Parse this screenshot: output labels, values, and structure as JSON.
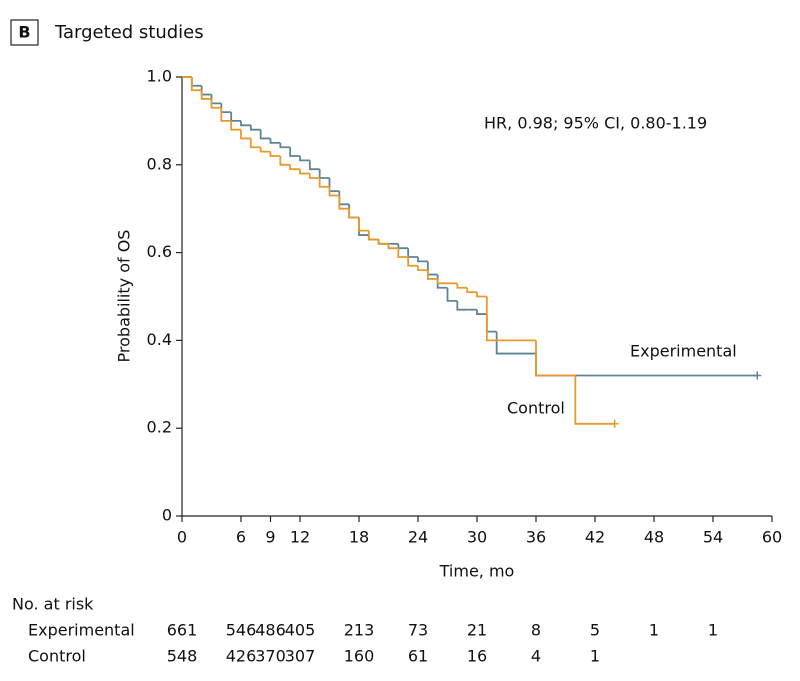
{
  "chart_data": {
    "type": "km",
    "panel": "B",
    "title": "Targeted studies",
    "annotation": "HR, 0.98; 95% CI, 0.80-1.19",
    "xlabel": "Time, mo",
    "ylabel": "Probability of OS",
    "xlim": [
      0,
      60
    ],
    "ylim": [
      0,
      1
    ],
    "xticks": [
      0,
      6,
      9,
      12,
      18,
      24,
      30,
      36,
      42,
      48,
      54,
      60
    ],
    "yticks": [
      0,
      0.2,
      0.4,
      0.6,
      0.8,
      {
        "value": 1,
        "label": "1.0"
      }
    ],
    "at_risk_title": "No. at risk",
    "at_risk_times": [
      0,
      6,
      9,
      12,
      18,
      24,
      30,
      36,
      42,
      48,
      54
    ],
    "series": [
      {
        "name": "Experimental",
        "color": "#5d8595",
        "x": [
          0,
          1,
          2,
          3,
          4,
          5,
          6,
          7,
          8,
          9,
          10,
          11,
          12,
          13,
          14,
          15,
          16,
          17,
          18,
          19,
          20,
          21,
          22,
          23,
          24,
          25,
          26,
          27,
          28,
          29,
          30,
          31,
          32,
          36,
          58.5
        ],
        "values": [
          1,
          0.98,
          0.96,
          0.94,
          0.92,
          0.9,
          0.89,
          0.88,
          0.86,
          0.85,
          0.84,
          0.82,
          0.81,
          0.79,
          0.77,
          0.74,
          0.71,
          0.68,
          0.64,
          0.63,
          0.62,
          0.62,
          0.61,
          0.59,
          0.58,
          0.55,
          0.52,
          0.49,
          0.47,
          0.47,
          0.46,
          0.42,
          0.37,
          0.32,
          0.32
        ],
        "at_risk": [
          661,
          546,
          486,
          405,
          213,
          73,
          21,
          8,
          5,
          1,
          1
        ]
      },
      {
        "name": "Control",
        "color": "#e89a2c",
        "x": [
          0,
          1,
          2,
          3,
          4,
          5,
          6,
          7,
          8,
          9,
          10,
          11,
          12,
          13,
          14,
          15,
          16,
          17,
          18,
          19,
          20,
          21,
          22,
          23,
          24,
          25,
          26,
          27,
          28,
          29,
          30,
          31,
          32,
          36,
          40,
          44
        ],
        "values": [
          1,
          0.97,
          0.95,
          0.93,
          0.9,
          0.88,
          0.86,
          0.84,
          0.83,
          0.82,
          0.8,
          0.79,
          0.78,
          0.77,
          0.75,
          0.73,
          0.7,
          0.68,
          0.65,
          0.63,
          0.62,
          0.61,
          0.59,
          0.57,
          0.56,
          0.54,
          0.53,
          0.53,
          0.52,
          0.51,
          0.5,
          0.4,
          0.4,
          0.32,
          0.21,
          0.21
        ],
        "at_risk": [
          548,
          426,
          370,
          307,
          160,
          61,
          16,
          4,
          1,
          null,
          null
        ]
      }
    ]
  }
}
